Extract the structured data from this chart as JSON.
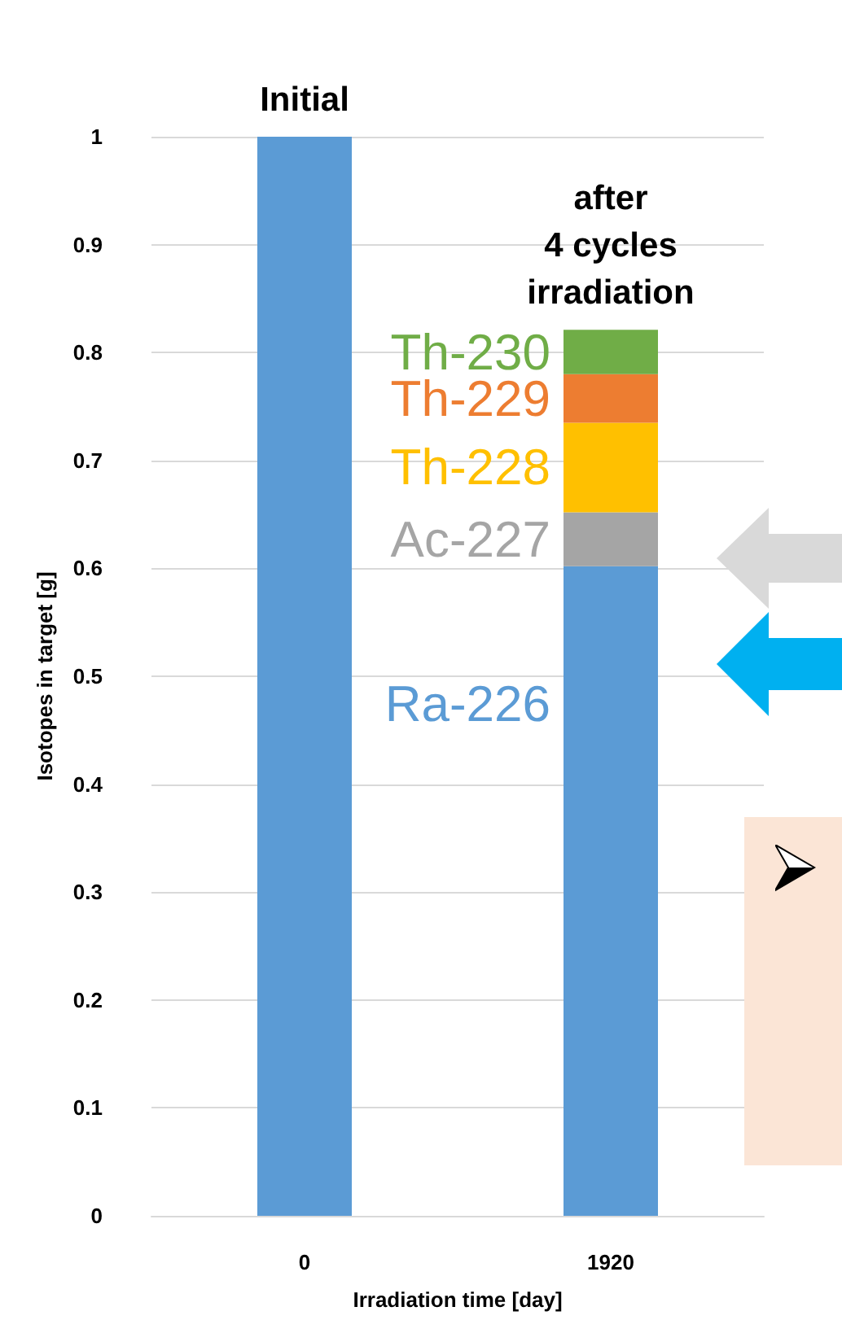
{
  "chart_data": {
    "type": "bar",
    "stacked": true,
    "xlabel": "Irradiation time [day]",
    "ylabel": "Isotopes in target [g]",
    "categories": [
      "0",
      "1920"
    ],
    "series": [
      {
        "name": "Ra-226",
        "color": "#5b9bd5",
        "values": [
          1,
          0.602
        ]
      },
      {
        "name": "Ac-227",
        "color": "#a5a5a5",
        "values": [
          null,
          0.05
        ]
      },
      {
        "name": "Th-228",
        "color": "#ffc000",
        "values": [
          null,
          0.083
        ]
      },
      {
        "name": "Th-229",
        "color": "#ed7d31",
        "values": [
          null,
          0.045
        ]
      },
      {
        "name": "Th-230",
        "color": "#70ad47",
        "values": [
          null,
          0.041
        ]
      }
    ],
    "ylim": [
      0,
      1
    ],
    "yticks": [
      0,
      0.1,
      0.2,
      0.3,
      0.4,
      0.5,
      0.6,
      0.7,
      0.8,
      0.9,
      1
    ],
    "grid": "y",
    "legend": false,
    "annotations": [
      {
        "text": "Initial",
        "x": "0",
        "y": 1
      },
      {
        "text": "after\n4 cycles\nirradiation",
        "x": "1920",
        "y": 0.821
      }
    ]
  }
}
